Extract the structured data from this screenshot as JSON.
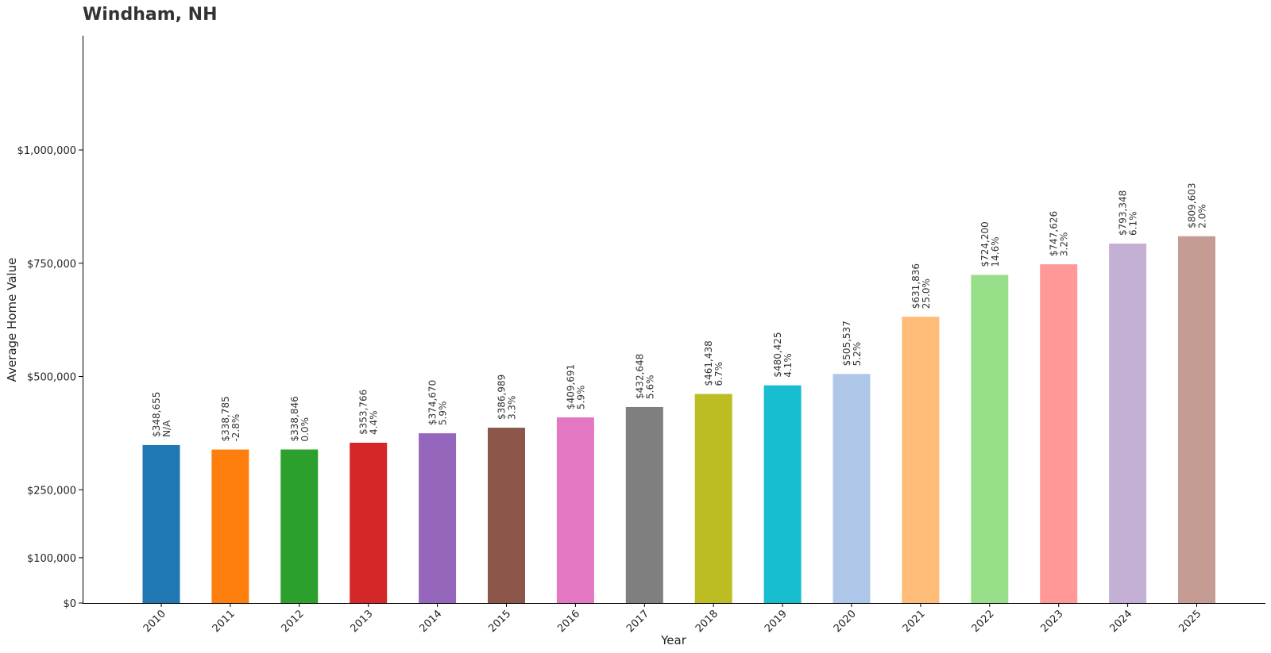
{
  "chart_data": {
    "type": "bar",
    "title": "Windham, NH",
    "xlabel": "Year",
    "ylabel": "Average Home Value",
    "ylim": [
      0,
      1250000
    ],
    "yticks": [
      0,
      100000,
      250000,
      500000,
      750000,
      1000000
    ],
    "ytick_labels": [
      "$0",
      "$100,000",
      "$250,000",
      "$500,000",
      "$750,000",
      "$1,000,000"
    ],
    "grid": false,
    "categories": [
      "2010",
      "2011",
      "2012",
      "2013",
      "2014",
      "2015",
      "2016",
      "2017",
      "2018",
      "2019",
      "2020",
      "2021",
      "2022",
      "2023",
      "2024",
      "2025"
    ],
    "values": [
      348655,
      338785,
      338846,
      353766,
      374670,
      386989,
      409691,
      432648,
      461438,
      480425,
      505537,
      631836,
      724200,
      747626,
      793348,
      809603
    ],
    "value_labels": [
      "$348,655",
      "$338,785",
      "$338,846",
      "$353,766",
      "$374,670",
      "$386,989",
      "$409,691",
      "$432,648",
      "$461,438",
      "$480,425",
      "$505,537",
      "$631,836",
      "$724,200",
      "$747,626",
      "$793,348",
      "$809,603"
    ],
    "change_labels": [
      "N/A",
      "-2.8%",
      "0.0%",
      "4.4%",
      "5.9%",
      "3.3%",
      "5.9%",
      "5.6%",
      "6.7%",
      "4.1%",
      "5.2%",
      "25.0%",
      "14.6%",
      "3.2%",
      "6.1%",
      "2.0%"
    ],
    "colors": [
      "#1f77b4",
      "#ff7f0e",
      "#2ca02c",
      "#d62728",
      "#9467bd",
      "#8c564b",
      "#e377c2",
      "#7f7f7f",
      "#bcbd22",
      "#17becf",
      "#aec7e8",
      "#ffbb78",
      "#98df8a",
      "#ff9896",
      "#c5b0d5",
      "#c49c94"
    ]
  }
}
